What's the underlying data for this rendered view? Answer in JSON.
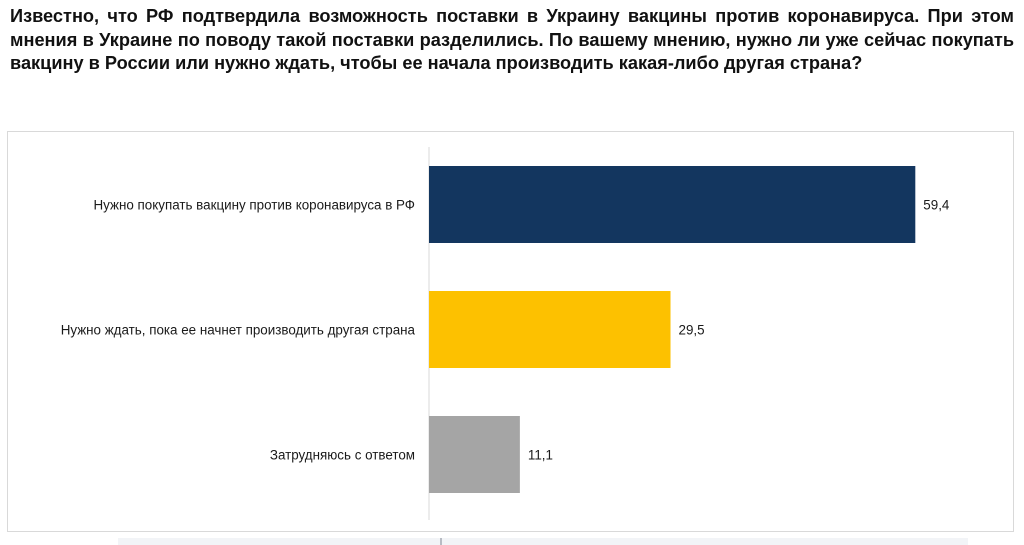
{
  "question": "Известно, что РФ подтвердила возможность поставки в Украину вакцины против коронавируса. При этом мнения в Украине по поводу такой поставки разделились. По вашему мнению, нужно ли уже сейчас покупать вакцину в России или нужно ждать, чтобы ее начала производить какая-либо другая страна?",
  "chart_data": {
    "type": "bar",
    "orientation": "horizontal",
    "title": "",
    "xlabel": "",
    "ylabel": "",
    "xlim": [
      0,
      60
    ],
    "grid": false,
    "legend": "none",
    "categories": [
      "Нужно покупать вакцину против коронавируса в РФ",
      "Нужно ждать, пока ее начнет производить другая страна",
      "Затрудняюсь с ответом"
    ],
    "values": [
      59.4,
      29.5,
      11.1
    ],
    "value_labels": [
      "59,4",
      "29,5",
      "11,1"
    ],
    "colors": [
      "#13365f",
      "#fdc100",
      "#a5a5a5"
    ]
  }
}
